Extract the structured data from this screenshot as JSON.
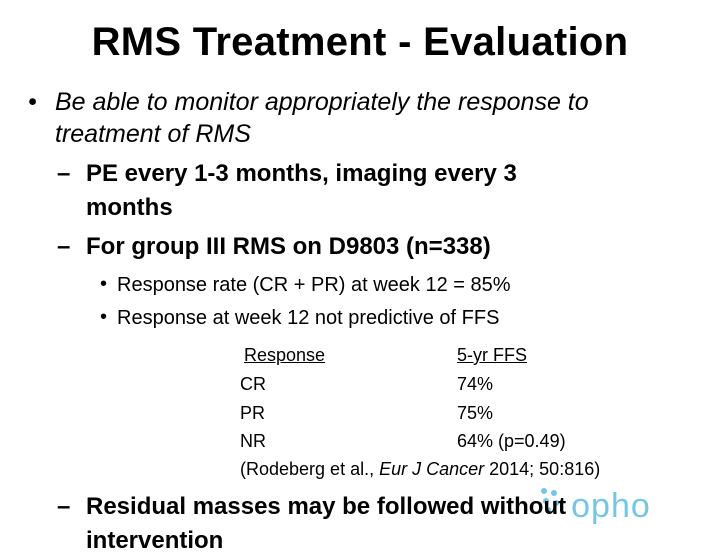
{
  "slide": {
    "title": "RMS Treatment - Evaluation",
    "bullet_main_line1": "Be able to monitor appropriately the response to",
    "bullet_main_line2": "treatment of RMS",
    "sub1_line1": "PE every 1-3 months, imaging every 3",
    "sub1_line2": "months",
    "sub2": "For group III RMS on D9803 (n=338)",
    "subsub1": "Response rate (CR + PR) at week 12 = 85%",
    "subsub2": "Response at week 12 not predictive of FFS",
    "table": {
      "headers": [
        "Response",
        "5-yr FFS"
      ],
      "rows": [
        [
          "CR",
          "74%"
        ],
        [
          "PR",
          "75%"
        ],
        [
          "NR",
          "64% (p=0.49)"
        ]
      ]
    },
    "citation": {
      "prefix": "(Rodeberg et al., ",
      "journal": "Eur J Cancer",
      "suffix": " 2014; 50:816)"
    },
    "sub3_line1": "Residual masses may be followed without",
    "sub3_line2": "intervention",
    "bullet_char": "•",
    "dash_char": "–"
  },
  "watermark": {
    "text": "opho",
    "color": "#2ba8d6",
    "icon": "molecule-dots-icon"
  }
}
